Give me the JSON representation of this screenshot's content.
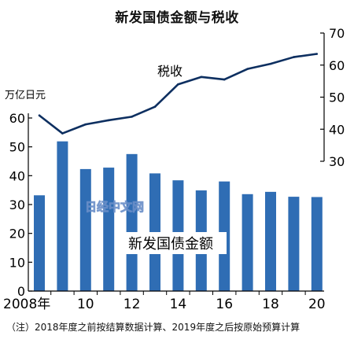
{
  "title": "新发国债金额与税收",
  "note": "（注）2018年度之前按结算数据计算、2019年度之后按原始预算计算",
  "watermark": "日经中文网",
  "chart_data": {
    "type": "bar+line",
    "x_years": [
      2008,
      2009,
      2010,
      2011,
      2012,
      2013,
      2014,
      2015,
      2016,
      2017,
      2018,
      2019,
      2020
    ],
    "x_tick_labels": [
      "2008年",
      "10",
      "12",
      "14",
      "16",
      "18",
      "20"
    ],
    "x_tick_years": [
      2008,
      2010,
      2012,
      2014,
      2016,
      2018,
      2020
    ],
    "left_axis": {
      "unit_label": "万亿日元",
      "ylim": [
        0,
        60
      ],
      "ticks": [
        0,
        10,
        20,
        30,
        40,
        50,
        60
      ]
    },
    "right_axis": {
      "ylim": [
        30,
        70
      ],
      "ticks": [
        30,
        40,
        50,
        60,
        70
      ]
    },
    "series": [
      {
        "name": "新发国债金额",
        "kind": "bar",
        "axis": "left",
        "color": "#2f6db4",
        "values": [
          33.2,
          51.9,
          42.3,
          42.8,
          47.5,
          40.8,
          38.4,
          34.9,
          38.0,
          33.6,
          34.4,
          32.7,
          32.6
        ]
      },
      {
        "name": "税收",
        "kind": "line",
        "axis": "right",
        "color": "#0d2f60",
        "values": [
          44.3,
          38.7,
          41.5,
          42.8,
          43.9,
          47.0,
          54.0,
          56.3,
          55.5,
          58.8,
          60.4,
          62.5,
          63.5
        ]
      }
    ],
    "grid": false
  }
}
